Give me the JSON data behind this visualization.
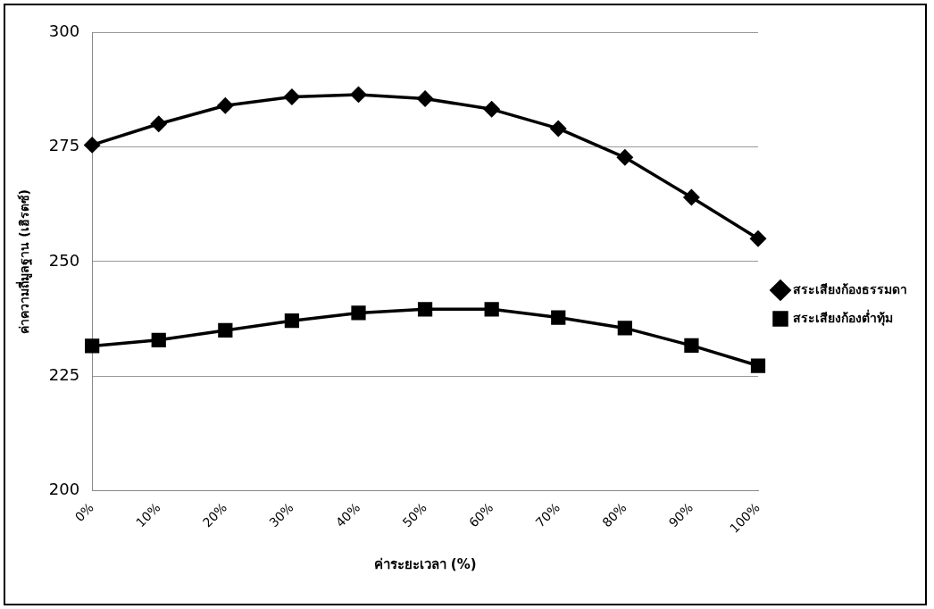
{
  "chart_data": {
    "type": "line",
    "xlabel": "ค่าระยะเวลา (%)",
    "ylabel": "ค่าความถี่มูลฐาน (เฮิรตซ์)",
    "categories": [
      "0%",
      "10%",
      "20%",
      "30%",
      "40%",
      "50%",
      "60%",
      "70%",
      "80%",
      "90%",
      "100%"
    ],
    "series": [
      {
        "name": "สระเสียงก้องธรรมดา",
        "color": "#000000",
        "marker": "diamond",
        "values": [
          275.4,
          280.0,
          284.0,
          285.9,
          286.4,
          285.5,
          283.2,
          279.0,
          272.7,
          264.0,
          255.0
        ]
      },
      {
        "name": "สระเสียงก้องต่ำทุ้ม",
        "color": "#000000",
        "marker": "square",
        "values": [
          231.6,
          232.9,
          235.0,
          237.1,
          238.8,
          239.6,
          239.6,
          237.8,
          235.5,
          231.7,
          227.3
        ]
      }
    ],
    "ylim": [
      200,
      300
    ],
    "yticks": [
      200,
      225,
      250,
      275,
      300
    ],
    "grid": "y",
    "legend": "right",
    "line_style": "solid"
  }
}
